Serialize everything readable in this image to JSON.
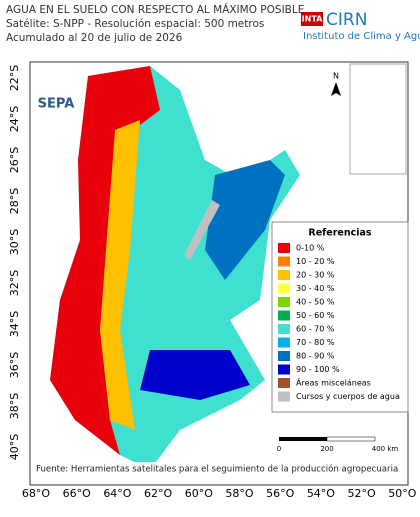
{
  "header": {
    "title": "AGUA EN EL SUELO CON RESPECTO AL MÁXIMO POSIBLE",
    "subtitle": "Satélite: S-NPP - Resolución espacial: 500 metros",
    "date": "Acumulado al 20 de julio de 2026"
  },
  "logos": {
    "inta": "INTA",
    "cirn": "CIRN",
    "institute": "Instituto de Clima y Agua",
    "sepa": "SEPA",
    "north": "N"
  },
  "lat_labels": [
    "22°S",
    "24°S",
    "26°S",
    "28°S",
    "30°S",
    "32°S",
    "34°S",
    "36°S",
    "38°S",
    "40°S"
  ],
  "lon_labels": [
    "68°O",
    "66°O",
    "64°O",
    "62°O",
    "60°O",
    "58°O",
    "56°O",
    "54°O",
    "52°O",
    "50°O"
  ],
  "legend": {
    "title": "Referencias",
    "items": [
      {
        "label": "0-10 %",
        "color": "#e8000b"
      },
      {
        "label": "10 - 20 %",
        "color": "#ff8000"
      },
      {
        "label": "20 - 30 %",
        "color": "#ffc000"
      },
      {
        "label": "30 - 40 %",
        "color": "#ffff40"
      },
      {
        "label": "40 - 50 %",
        "color": "#7fd400"
      },
      {
        "label": "50 - 60 %",
        "color": "#00b050"
      },
      {
        "label": "60 - 70 %",
        "color": "#40e0d0"
      },
      {
        "label": "70 - 80 %",
        "color": "#00b0f0"
      },
      {
        "label": "80 - 90 %",
        "color": "#0070c0"
      },
      {
        "label": "90 - 100 %",
        "color": "#0000cc"
      },
      {
        "label": "Áreas misceláneas",
        "color": "#a0522d"
      },
      {
        "label": "Cursos y cuerpos de agua",
        "color": "#c0c0c0"
      }
    ]
  },
  "scale": {
    "labels": [
      "0",
      "200",
      "400 km"
    ]
  },
  "source": "Fuente: Herramientas satelitales para el seguimiento de la producción agropecuaria"
}
